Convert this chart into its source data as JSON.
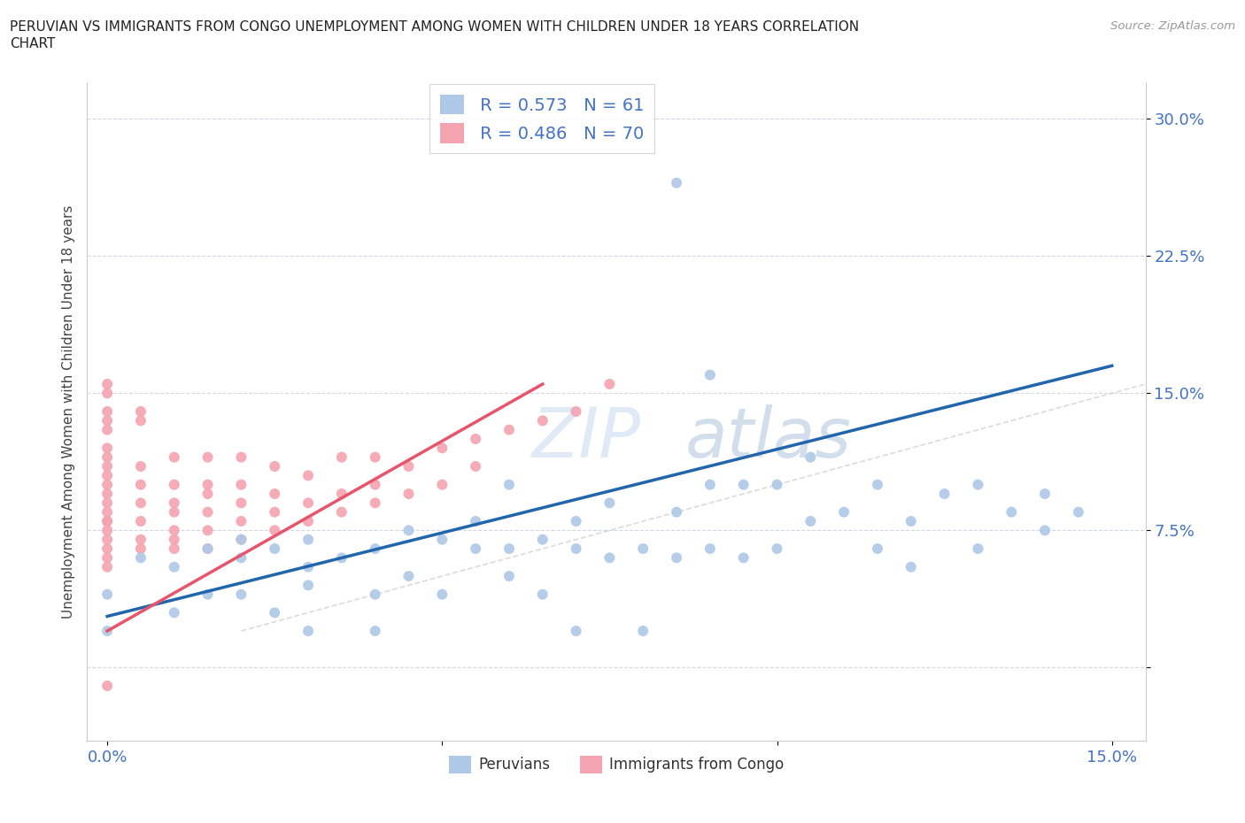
{
  "title_line1": "PERUVIAN VS IMMIGRANTS FROM CONGO UNEMPLOYMENT AMONG WOMEN WITH CHILDREN UNDER 18 YEARS CORRELATION",
  "title_line2": "CHART",
  "source": "Source: ZipAtlas.com",
  "ylabel": "Unemployment Among Women with Children Under 18 years",
  "xlim": [
    -0.003,
    0.155
  ],
  "ylim": [
    -0.04,
    0.32
  ],
  "x_ticks": [
    0.0,
    0.05,
    0.1,
    0.15
  ],
  "x_tick_labels": [
    "0.0%",
    "",
    "",
    "15.0%"
  ],
  "y_ticks": [
    0.0,
    0.075,
    0.15,
    0.225,
    0.3
  ],
  "y_tick_labels": [
    "",
    "7.5%",
    "15.0%",
    "22.5%",
    "30.0%"
  ],
  "watermark": "ZIPatlas",
  "peru_color": "#aec8e8",
  "peru_line_color": "#2166ac",
  "congo_color": "#f4a3b0",
  "congo_line_color": "#e8546a",
  "background_color": "#ffffff",
  "grid_color": "#d0d8e8",
  "title_color": "#222222",
  "axis_label_color": "#444444",
  "tick_label_color": "#4472c4",
  "peru_R": 0.573,
  "peru_N": 61,
  "congo_R": 0.486,
  "congo_N": 70,
  "peru_x": [
    0.0,
    0.0,
    0.005,
    0.01,
    0.01,
    0.015,
    0.015,
    0.02,
    0.02,
    0.02,
    0.025,
    0.025,
    0.03,
    0.03,
    0.03,
    0.03,
    0.035,
    0.04,
    0.04,
    0.04,
    0.045,
    0.045,
    0.05,
    0.05,
    0.055,
    0.055,
    0.06,
    0.06,
    0.06,
    0.065,
    0.065,
    0.07,
    0.07,
    0.07,
    0.075,
    0.075,
    0.08,
    0.08,
    0.085,
    0.085,
    0.09,
    0.09,
    0.09,
    0.095,
    0.095,
    0.1,
    0.1,
    0.105,
    0.105,
    0.11,
    0.115,
    0.115,
    0.12,
    0.12,
    0.125,
    0.13,
    0.13,
    0.135,
    0.14,
    0.14,
    0.145
  ],
  "peru_y": [
    0.04,
    0.02,
    0.06,
    0.055,
    0.03,
    0.065,
    0.04,
    0.07,
    0.06,
    0.04,
    0.065,
    0.03,
    0.07,
    0.055,
    0.045,
    0.02,
    0.06,
    0.065,
    0.04,
    0.02,
    0.075,
    0.05,
    0.07,
    0.04,
    0.065,
    0.08,
    0.1,
    0.065,
    0.05,
    0.07,
    0.04,
    0.08,
    0.065,
    0.02,
    0.09,
    0.06,
    0.065,
    0.02,
    0.085,
    0.06,
    0.16,
    0.1,
    0.065,
    0.1,
    0.06,
    0.1,
    0.065,
    0.115,
    0.08,
    0.085,
    0.1,
    0.065,
    0.08,
    0.055,
    0.095,
    0.1,
    0.065,
    0.085,
    0.095,
    0.075,
    0.085
  ],
  "congo_x": [
    0.0,
    0.0,
    0.0,
    0.0,
    0.0,
    0.0,
    0.0,
    0.0,
    0.0,
    0.0,
    0.0,
    0.0,
    0.0,
    0.0,
    0.0,
    0.0,
    0.0,
    0.0,
    0.0,
    0.0,
    0.0,
    0.005,
    0.005,
    0.005,
    0.005,
    0.005,
    0.005,
    0.005,
    0.005,
    0.01,
    0.01,
    0.01,
    0.01,
    0.01,
    0.01,
    0.01,
    0.015,
    0.015,
    0.015,
    0.015,
    0.015,
    0.015,
    0.02,
    0.02,
    0.02,
    0.02,
    0.02,
    0.025,
    0.025,
    0.025,
    0.025,
    0.03,
    0.03,
    0.03,
    0.035,
    0.035,
    0.035,
    0.04,
    0.04,
    0.04,
    0.045,
    0.045,
    0.05,
    0.05,
    0.055,
    0.055,
    0.06,
    0.065,
    0.07,
    0.075
  ],
  "congo_y": [
    0.06,
    0.065,
    0.055,
    0.07,
    0.075,
    0.08,
    0.08,
    0.085,
    0.09,
    0.095,
    0.1,
    0.105,
    0.11,
    0.115,
    0.12,
    0.13,
    0.135,
    0.14,
    0.15,
    0.155,
    -0.01,
    0.065,
    0.07,
    0.08,
    0.09,
    0.1,
    0.11,
    0.135,
    0.14,
    0.065,
    0.07,
    0.075,
    0.085,
    0.09,
    0.1,
    0.115,
    0.065,
    0.075,
    0.085,
    0.095,
    0.1,
    0.115,
    0.07,
    0.08,
    0.09,
    0.1,
    0.115,
    0.075,
    0.085,
    0.095,
    0.11,
    0.08,
    0.09,
    0.105,
    0.085,
    0.095,
    0.115,
    0.09,
    0.1,
    0.115,
    0.095,
    0.11,
    0.1,
    0.12,
    0.11,
    0.125,
    0.13,
    0.135,
    0.14,
    0.155
  ],
  "peru_line_x": [
    0.0,
    0.15
  ],
  "peru_line_y": [
    0.028,
    0.165
  ],
  "congo_line_x": [
    0.0,
    0.065
  ],
  "congo_line_y": [
    0.02,
    0.155
  ]
}
